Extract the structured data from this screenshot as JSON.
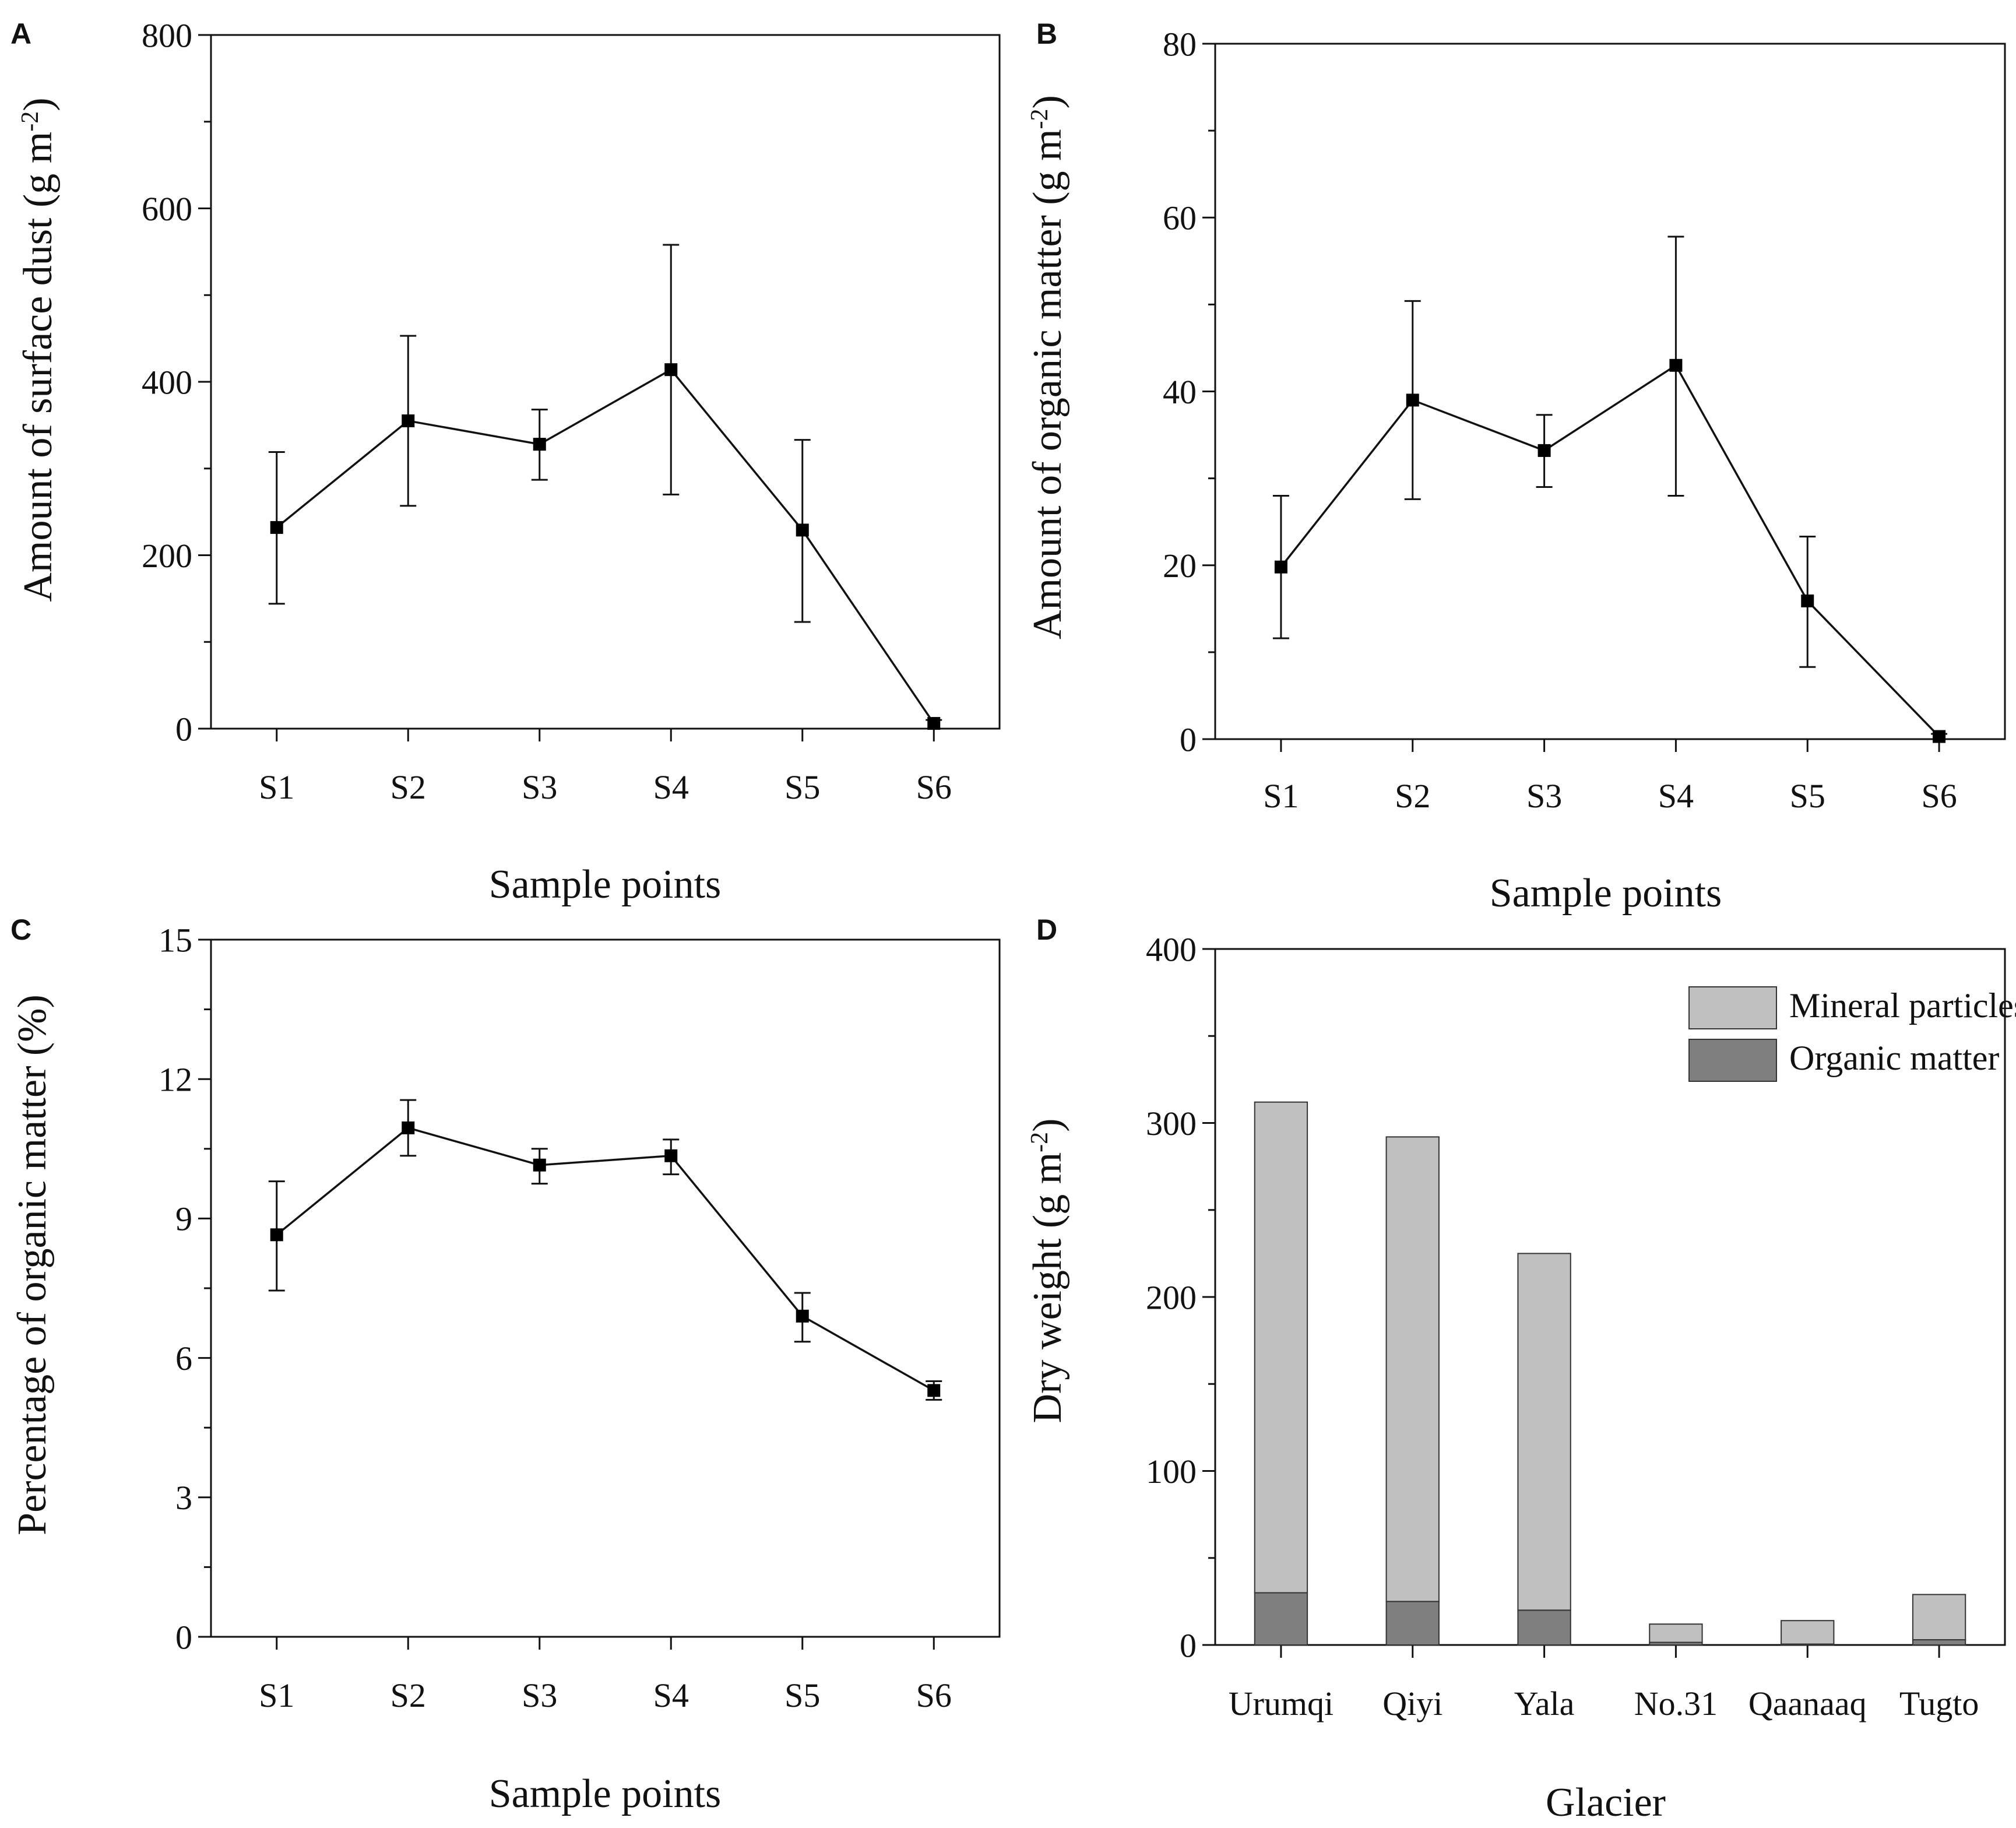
{
  "chart_data": [
    {
      "panel": "A",
      "type": "line",
      "title": "",
      "categories": [
        "S1",
        "S2",
        "S3",
        "S4",
        "S5",
        "S6"
      ],
      "series": [
        {
          "name": "Amount of surface dust",
          "values": [
            232,
            355,
            328,
            414,
            229,
            6
          ],
          "error_low": [
            144,
            257,
            287,
            270,
            123,
            0
          ],
          "error_high": [
            319,
            453,
            368,
            558,
            333,
            10
          ]
        }
      ],
      "xlabel": "Sample points",
      "ylabel": "Amount of surface dust (g m",
      "ylabel_sup": "-2",
      "ylabel_close": ")",
      "ylim": [
        0,
        800
      ],
      "yticks": [
        0,
        200,
        400,
        600,
        800
      ],
      "grid": false
    },
    {
      "panel": "B",
      "type": "line",
      "title": "",
      "categories": [
        "S1",
        "S2",
        "S3",
        "S4",
        "S5",
        "S6"
      ],
      "series": [
        {
          "name": "Amount of organic matter",
          "values": [
            19.8,
            39,
            33.2,
            43,
            15.9,
            0.3
          ],
          "error_low": [
            11.6,
            27.6,
            29,
            28,
            8.3,
            0
          ],
          "error_high": [
            28,
            50.4,
            37.3,
            57.8,
            23.3,
            0.6
          ]
        }
      ],
      "xlabel": "Sample points",
      "ylabel": "Amount of organic matter (g m",
      "ylabel_sup": "-2",
      "ylabel_close": ")",
      "ylim": [
        0,
        80
      ],
      "yticks": [
        0,
        20,
        40,
        60,
        80
      ],
      "grid": false
    },
    {
      "panel": "C",
      "type": "line",
      "title": "",
      "categories": [
        "S1",
        "S2",
        "S3",
        "S4",
        "S5",
        "S6"
      ],
      "series": [
        {
          "name": "Percentage of organic matter",
          "values": [
            8.65,
            10.95,
            10.15,
            10.35,
            6.9,
            5.3
          ],
          "error_low": [
            7.45,
            10.35,
            9.75,
            9.95,
            6.35,
            5.1
          ],
          "error_high": [
            9.8,
            11.55,
            10.5,
            10.7,
            7.4,
            5.5
          ]
        }
      ],
      "xlabel": "Sample points",
      "ylabel": "Percentage of organic matter (%)",
      "ylim": [
        0,
        15
      ],
      "yticks": [
        0,
        3,
        6,
        9,
        12,
        15
      ],
      "grid": false
    },
    {
      "panel": "D",
      "type": "bar",
      "stacked": true,
      "title": "",
      "categories": [
        "Urumqi",
        "Qiyi",
        "Yala",
        "No.31",
        "Qaanaaq",
        "Tugto"
      ],
      "series": [
        {
          "name": "Organic matter",
          "values": [
            30,
            25,
            20,
            1.5,
            0.5,
            3
          ],
          "color": "#7f7f7f"
        },
        {
          "name": "Mineral particles",
          "values": [
            282,
            267,
            205,
            10.5,
            13.5,
            26
          ],
          "color": "#c0c0c0"
        }
      ],
      "xlabel": "Glacier",
      "ylabel": "Dry weight (g m",
      "ylabel_sup": "-2",
      "ylabel_close": ")",
      "ylim": [
        0,
        400
      ],
      "yticks": [
        0,
        100,
        200,
        300,
        400
      ],
      "legend": {
        "placement": "top-right",
        "entries": [
          "Mineral particles",
          "Organic matter"
        ]
      },
      "grid": false
    }
  ]
}
